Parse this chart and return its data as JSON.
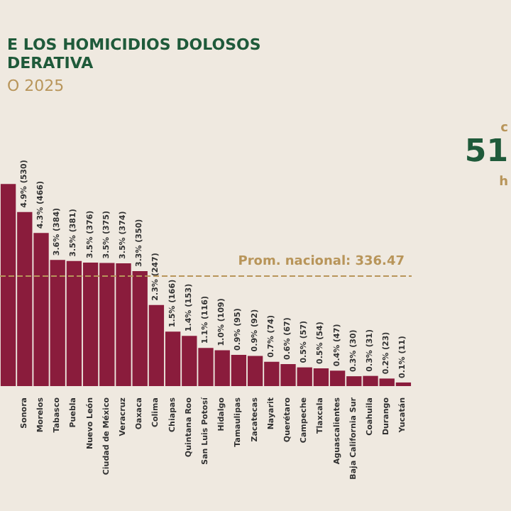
{
  "chart_data": {
    "type": "bar",
    "title": "E LOS HOMICIDIOS DOLOSOS\nDERATIVA",
    "subtitle": "O 2025",
    "categories": [
      null,
      "Sonora",
      "Morelos",
      "Tabasco",
      "Puebla",
      "Nuevo León",
      "Ciudad de México",
      "Veracruz",
      "Oaxaca",
      "Colima",
      "Chiapas",
      "Quintana Roo",
      "San Luis Potosí",
      "Hidalgo",
      "Tamaulipas",
      "Zacatecas",
      "Nayarit",
      "Querétaro",
      "Campeche",
      "Tlaxcala",
      "Aguascalientes",
      "Baja California Sur",
      "Coahuila",
      "Durango",
      "Yucatán"
    ],
    "values": [
      615,
      530,
      466,
      384,
      381,
      376,
      375,
      374,
      350,
      247,
      166,
      153,
      116,
      109,
      95,
      92,
      74,
      67,
      57,
      54,
      47,
      30,
      31,
      23,
      11
    ],
    "value_labels": [
      null,
      "4.9% (530)",
      "4.3% (466)",
      "3.6% (384)",
      "3.5% (381)",
      "3.5% (376)",
      "3.5% (375)",
      "3.5% (374)",
      "3.3% (350)",
      "2.3% (247)",
      "1.5% (166)",
      "1.4% (153)",
      "1.1% (116)",
      "1.0% (109)",
      "0.9% (95)",
      "0.9% (92)",
      "0.7% (74)",
      "0.6% (67)",
      "0.5% (57)",
      "0.5% (54)",
      "0.4% (47)",
      "0.3% (30)",
      "0.3% (31)",
      "0.2% (23)",
      "0.1% (11)"
    ],
    "color": "#8a1c3c",
    "ref_lines": [
      {
        "axis": "y",
        "value": 336.47,
        "label": "Prom. nacional: 336.47",
        "color": "#b8955a",
        "line_style": "dashed"
      }
    ],
    "annotations": [
      "c",
      "51",
      "h"
    ]
  }
}
